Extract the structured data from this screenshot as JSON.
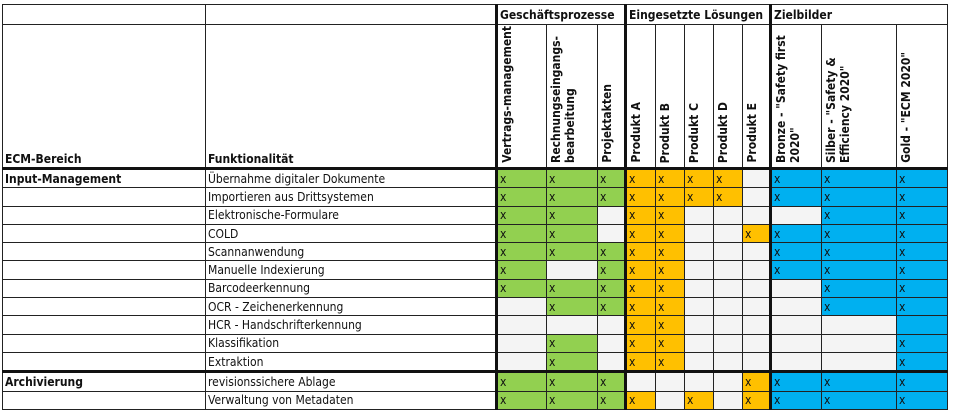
{
  "groups": {
    "geschaeft": "Geschäftsprozesse",
    "loesungen": "Eingesetzte Lösungen",
    "zielbilder": "Zielbilder"
  },
  "headers": {
    "bereich": "ECM-Bereich",
    "funktion": "Funktionalität",
    "columns": [
      "Vertrags-management",
      "Rechnungseingangs-bearbeitung",
      "Projektakten",
      "Produkt A",
      "Produkt B",
      "Produkt C",
      "Produkt D",
      "Produkt E",
      "Bronze - \"Safety first 2020\"",
      "Silber - \"Safety & Efficiency 2020\"",
      "Gold - \"ECM 2020\""
    ]
  },
  "colors": {
    "geschaeft": "#92d050",
    "loesungen": "#ffc000",
    "zielbilder": "#00b0f0"
  },
  "rows": [
    {
      "bereich": "Input-Management",
      "funktion": "Übernahme digitaler Dokumente",
      "cells": [
        "x",
        "x",
        "x",
        "x",
        "x",
        "x",
        "x",
        "",
        "x",
        "x",
        "x"
      ]
    },
    {
      "bereich": "",
      "funktion": "Importieren aus Drittsystemen",
      "cells": [
        "x",
        "x",
        "x",
        "x",
        "x",
        "x",
        "x",
        "",
        "x",
        "x",
        "x"
      ]
    },
    {
      "bereich": "",
      "funktion": "Elektronische-Formulare",
      "cells": [
        "x",
        "x",
        "",
        "x",
        "x",
        "",
        "",
        "",
        "",
        "x",
        "x"
      ]
    },
    {
      "bereich": "",
      "funktion": "COLD",
      "cells": [
        "x",
        "x",
        "",
        "x",
        "x",
        "",
        "",
        "x",
        "x",
        "x",
        "x"
      ]
    },
    {
      "bereich": "",
      "funktion": "Scannanwendung",
      "cells": [
        "x",
        "x",
        "x",
        "x",
        "x",
        "",
        "",
        "",
        "x",
        "x",
        "x"
      ]
    },
    {
      "bereich": "",
      "funktion": "Manuelle Indexierung",
      "cells": [
        "x",
        "",
        "x",
        "x",
        "x",
        "",
        "",
        "",
        "x",
        "x",
        "x"
      ]
    },
    {
      "bereich": "",
      "funktion": "Barcodeerkennung",
      "cells": [
        "x",
        "x",
        "x",
        "x",
        "x",
        "",
        "",
        "",
        "",
        "x",
        "x"
      ]
    },
    {
      "bereich": "",
      "funktion": "OCR - Zeichenerkennung",
      "cells": [
        "",
        "x",
        "x",
        "x",
        "x",
        "",
        "",
        "",
        "",
        "x",
        "x"
      ]
    },
    {
      "bereich": "",
      "funktion": "HCR - Handschrifterkennung",
      "cells": [
        "",
        "",
        "",
        "x",
        "x",
        "",
        "",
        "",
        "",
        "",
        "filled"
      ]
    },
    {
      "bereich": "",
      "funktion": "Klassifikation",
      "cells": [
        "",
        "x",
        "",
        "x",
        "x",
        "",
        "",
        "",
        "",
        "",
        "x"
      ]
    },
    {
      "bereich": "",
      "funktion": "Extraktion",
      "cells": [
        "",
        "x",
        "",
        "x",
        "x",
        "",
        "",
        "",
        "",
        "",
        "x"
      ]
    },
    {
      "bereich": "Archivierung",
      "funktion": "revisionssichere Ablage",
      "cells": [
        "x",
        "x",
        "x",
        "",
        "",
        "",
        "",
        "x",
        "x",
        "x",
        "x"
      ]
    },
    {
      "bereich": "",
      "funktion": "Verwaltung von Metadaten",
      "cells": [
        "x",
        "x",
        "x",
        "x",
        "",
        "x",
        "",
        "x",
        "x",
        "x",
        "x"
      ]
    }
  ]
}
